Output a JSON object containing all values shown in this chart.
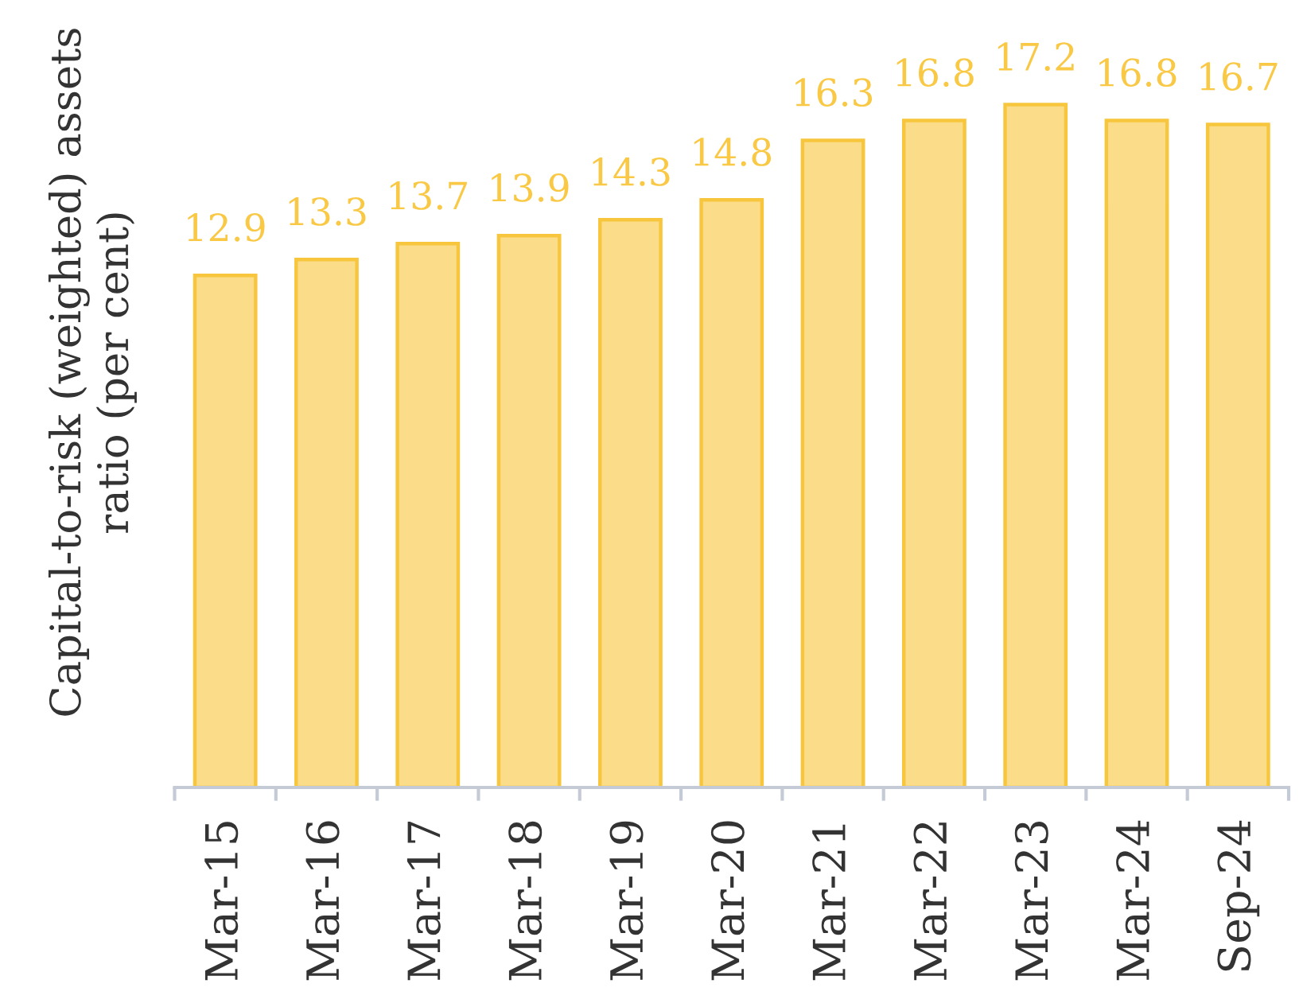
{
  "chart_data": {
    "type": "bar",
    "ylabel": "Capital-to-risk (weighted) assets\nratio (per cent)",
    "categories": [
      "Mar-15",
      "Mar-16",
      "Mar-17",
      "Mar-18",
      "Mar-19",
      "Mar-20",
      "Mar-21",
      "Mar-22",
      "Mar-23",
      "Mar-24",
      "Sep-24"
    ],
    "values": [
      12.9,
      13.3,
      13.7,
      13.9,
      14.3,
      14.8,
      16.3,
      16.8,
      17.2,
      16.8,
      16.7
    ],
    "color": "#fbdc88",
    "data_labels": true,
    "tick_labels": "x"
  }
}
